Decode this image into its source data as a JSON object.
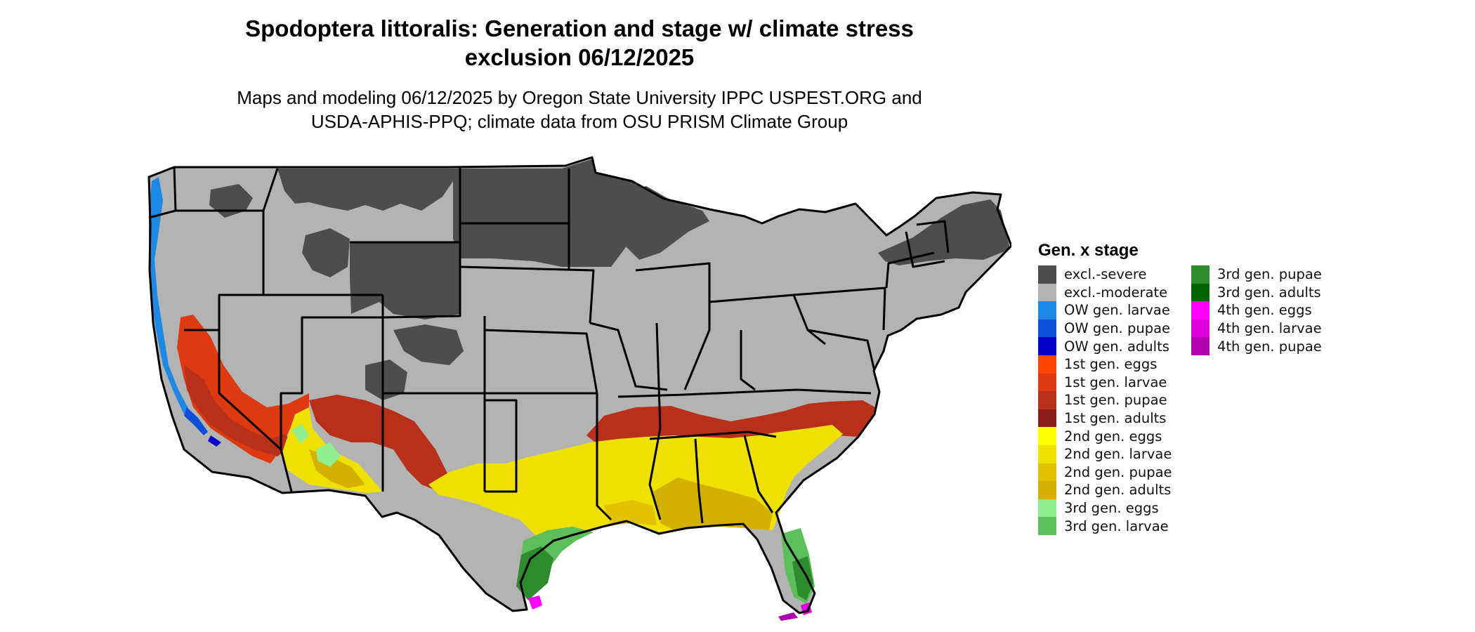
{
  "title": {
    "line1": "Spodoptera littoralis: Generation and stage w/ climate stress",
    "line2": "exclusion 06/12/2025"
  },
  "subtitle": {
    "line1": "Maps and modeling 06/12/2025 by Oregon State University IPPC USPEST.ORG and",
    "line2": "USDA-APHIS-PPQ; climate data from OSU PRISM Climate Group"
  },
  "legend": {
    "title": "Gen. x stage",
    "items": [
      {
        "label": "excl.-severe",
        "color": "#4d4d4d"
      },
      {
        "label": "excl.-moderate",
        "color": "#b3b3b3"
      },
      {
        "label": "OW gen. larvae",
        "color": "#1e88e5"
      },
      {
        "label": "OW gen. pupae",
        "color": "#0f4fd8"
      },
      {
        "label": "OW gen. adults",
        "color": "#0000c8"
      },
      {
        "label": "1st gen. eggs",
        "color": "#ff4500"
      },
      {
        "label": "1st gen. larvae",
        "color": "#dd3a12"
      },
      {
        "label": "1st gen. pupae",
        "color": "#b8301a"
      },
      {
        "label": "1st gen. adults",
        "color": "#8b1a1a"
      },
      {
        "label": "2nd gen. eggs",
        "color": "#ffff00"
      },
      {
        "label": "2nd gen. larvae",
        "color": "#eee000"
      },
      {
        "label": "2nd gen. pupae",
        "color": "#e0c200"
      },
      {
        "label": "2nd gen. adults",
        "color": "#d4b000"
      },
      {
        "label": "3rd gen. eggs",
        "color": "#90ee90"
      },
      {
        "label": "3rd gen. larvae",
        "color": "#5cbf5c"
      },
      {
        "label": "3rd gen. pupae",
        "color": "#2e8b2e"
      },
      {
        "label": "3rd gen. adults",
        "color": "#006400"
      },
      {
        "label": "4th gen. eggs",
        "color": "#ff00ff"
      },
      {
        "label": "4th gen. larvae",
        "color": "#dd00dd"
      },
      {
        "label": "4th gen. pupae",
        "color": "#b000b0"
      }
    ]
  }
}
